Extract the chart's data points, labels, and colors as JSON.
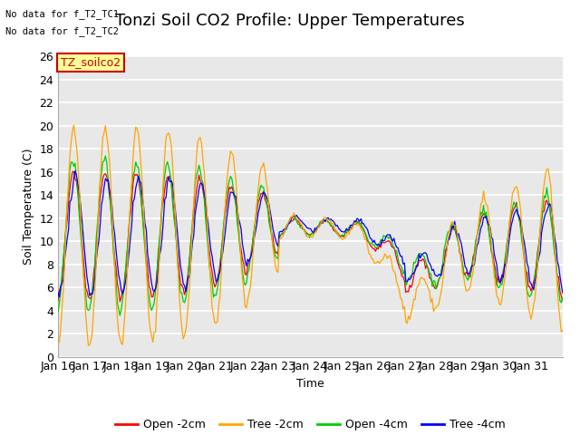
{
  "title": "Tonzi Soil CO2 Profile: Upper Temperatures",
  "ylabel": "Soil Temperature (C)",
  "xlabel": "Time",
  "annotations": [
    "No data for f_T2_TC1",
    "No data for f_T2_TC2"
  ],
  "box_label": "TZ_soilco2",
  "box_color": "#cc0000",
  "box_bg": "#ffff99",
  "ylim": [
    0,
    26
  ],
  "yticks": [
    0,
    2,
    4,
    6,
    8,
    10,
    12,
    14,
    16,
    18,
    20,
    22,
    24,
    26
  ],
  "xtick_labels": [
    "Jan 16",
    "Jan 17",
    "Jan 18",
    "Jan 19",
    "Jan 20",
    "Jan 21",
    "Jan 22",
    "Jan 23",
    "Jan 24",
    "Jan 25",
    "Jan 26",
    "Jan 27",
    "Jan 28",
    "Jan 29",
    "Jan 30",
    "Jan 31"
  ],
  "series_colors": [
    "#ff0000",
    "#ffa500",
    "#00cc00",
    "#0000ff"
  ],
  "series_names": [
    "Open -2cm",
    "Tree -2cm",
    "Open -4cm",
    "Tree -4cm"
  ],
  "background_color": "#ffffff",
  "plot_bg_color": "#e8e8e8",
  "title_fontsize": 13,
  "axis_fontsize": 9,
  "legend_fontsize": 9
}
